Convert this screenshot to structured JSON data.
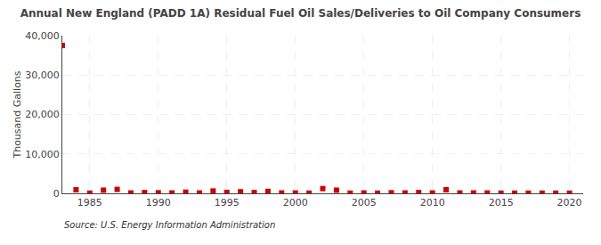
{
  "chart_data": {
    "type": "scatter",
    "title": "Annual New England (PADD 1A) Residual Fuel Oil Sales/Deliveries to Oil Company Consumers",
    "ylabel": "Thousand Gallons",
    "annotations": [
      "Source: U.S. Energy Information Administration"
    ],
    "x": [
      1983,
      1984,
      1985,
      1986,
      1987,
      1988,
      1989,
      1990,
      1991,
      1992,
      1993,
      1994,
      1995,
      1996,
      1997,
      1998,
      1999,
      2000,
      2001,
      2002,
      2003,
      2004,
      2005,
      2006,
      2007,
      2008,
      2009,
      2010,
      2011,
      2012,
      2013,
      2014,
      2015,
      2016,
      2017,
      2018,
      2019,
      2020
    ],
    "values": [
      37500,
      900,
      50,
      800,
      1000,
      100,
      200,
      150,
      100,
      300,
      100,
      600,
      250,
      400,
      200,
      500,
      100,
      100,
      50,
      1200,
      800,
      50,
      100,
      50,
      150,
      100,
      200,
      100,
      900,
      100,
      100,
      100,
      50,
      50,
      50,
      50,
      50,
      50
    ],
    "color": "#cc0000",
    "marker": "square",
    "xlim": [
      1983,
      2021
    ],
    "xticks": [
      1985,
      1990,
      1995,
      2000,
      2005,
      2010,
      2015,
      2020
    ],
    "ylim": [
      0,
      40000
    ],
    "yticks": [
      0,
      {
        "value": 10000,
        "label": "10,000"
      },
      {
        "value": 20000,
        "label": "20,000"
      },
      {
        "value": 30000,
        "label": "30,000"
      },
      {
        "value": 40000,
        "label": "40,000"
      }
    ],
    "grid": true
  }
}
